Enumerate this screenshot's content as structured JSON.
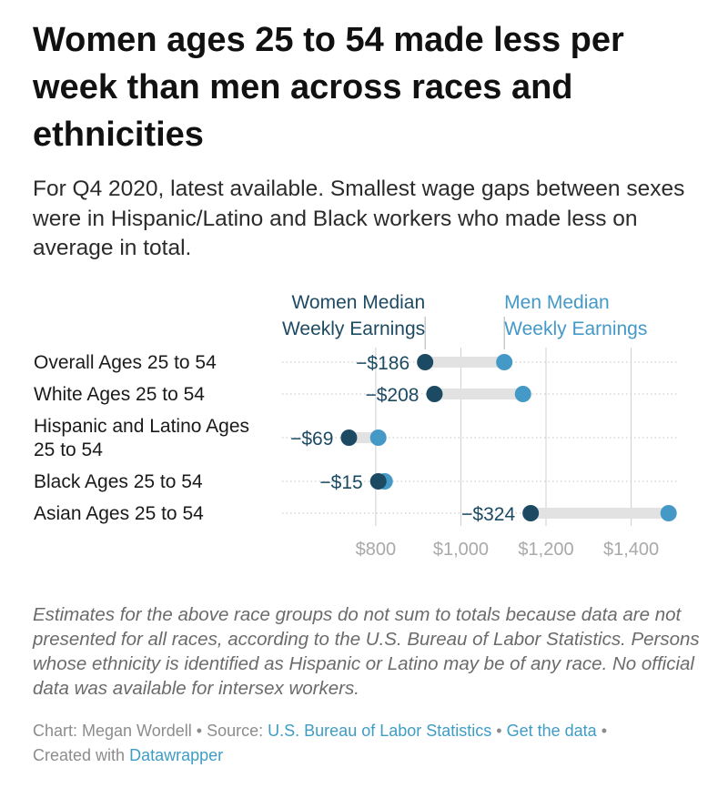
{
  "title": "Women ages 25 to 54 made less per week than men across races and ethnicities",
  "subtitle": "For Q4 2020, latest available. Smallest wage gaps between sexes were in Hispanic/Latino and Black workers who made less on average in total.",
  "notes": "Estimates for the above race groups do not sum to totals because data are not presented for all races, according to the U.S. Bureau of Labor Statistics. Persons whose ethnicity is identified as Hispanic or Latino may be of any race. No official data was available for intersex workers.",
  "footer": {
    "chart_by": "Chart: Megan Wordell",
    "source_label": "Source:",
    "source_name": "U.S. Bureau of Labor Statistics",
    "get_data": "Get the data",
    "created_with": "Created with",
    "tool": "Datawrapper",
    "separator": "•"
  },
  "colors": {
    "women": "#1d4a63",
    "men": "#4499c7",
    "connector": "#e2e2e2",
    "grid": "#d0d0d0",
    "tick": "#a9a9a9"
  },
  "chart_data": {
    "type": "dot-range",
    "series": [
      {
        "key": "women",
        "name": "Women Median Weekly Earnings",
        "color": "#1d4a63"
      },
      {
        "key": "men",
        "name": "Men Median Weekly Earnings",
        "color": "#4499c7"
      }
    ],
    "categories": [
      "Overall Ages 25 to 54",
      "White Ages 25 to 54",
      "Hispanic and Latino Ages 25 to 54",
      "Black Ages 25 to 54",
      "Asian Ages 25 to 54"
    ],
    "women": [
      916,
      938,
      737,
      806,
      1164
    ],
    "men": [
      1102,
      1146,
      806,
      821,
      1488
    ],
    "gap_labels": [
      "−$186",
      "−$208",
      "−$69",
      "−$15",
      "−$324"
    ],
    "x_ticks": [
      800,
      1000,
      1200,
      1400
    ],
    "x_tick_labels": [
      "$800",
      "$1,000",
      "$1,200",
      "$1,400"
    ],
    "xlim": [
      580,
      1510
    ],
    "grid": true
  }
}
